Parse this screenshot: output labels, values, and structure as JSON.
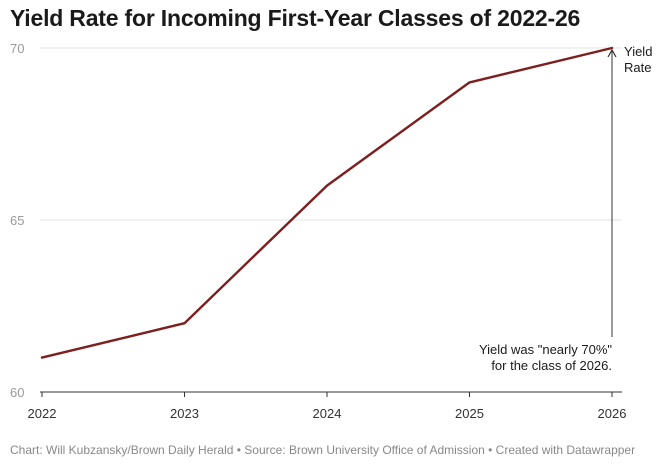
{
  "title": "Yield Rate for Incoming First-Year Classes of 2022-26",
  "footer": "Chart: Will Kubzansky/Brown Daily Herald • Source: Brown University Office of Admission • Created with Datawrapper",
  "colors": {
    "line": "#7d1f1f",
    "grid": "#e3e3e3",
    "arrow": "#333333"
  },
  "chart_data": {
    "type": "line",
    "title": "Yield Rate for Incoming First-Year Classes of 2022-26",
    "x": [
      "2022",
      "2023",
      "2024",
      "2025",
      "2026"
    ],
    "series": [
      {
        "name": "Yield Rate",
        "values": [
          61.0,
          62.0,
          66.0,
          69.0,
          70.0
        ]
      }
    ],
    "ylim": [
      60,
      70
    ],
    "yticks": [
      60,
      65,
      70
    ],
    "grid": true,
    "series_label": [
      "Yield",
      "Rate"
    ],
    "annotation": [
      "Yield was \"nearly 70%\"",
      "for the class of 2026."
    ]
  }
}
